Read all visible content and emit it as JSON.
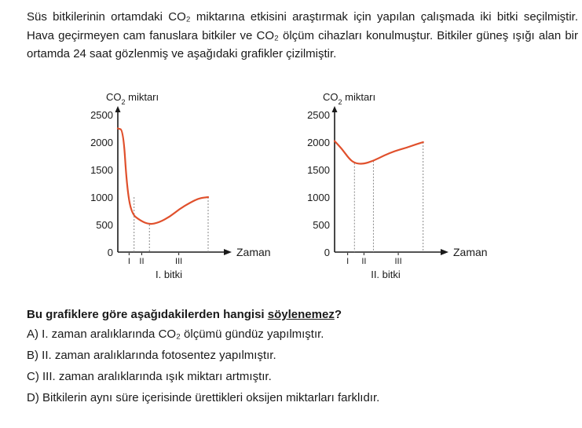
{
  "intro": {
    "text": "Süs bitkilerinin ortamdaki CO₂ miktarına etkisini araştırmak için yapılan çalışmada iki bitki seçilmiştir. Hava geçirmeyen cam fanuslara bitkiler ve CO₂ ölçüm cihazları konulmuştur. Bitkiler güneş ışığı alan bir ortamda 24 saat gözlenmiş ve aşağıdaki grafikler çizilmiştir."
  },
  "chart_data": [
    {
      "type": "line",
      "title": "I. bitki",
      "ylabel": "CO₂ miktarı",
      "xlabel": "Zaman",
      "ylim": [
        0,
        2500
      ],
      "yticks": [
        0,
        500,
        1000,
        1500,
        2000,
        2500
      ],
      "interval_labels": [
        "I",
        "II",
        "III"
      ],
      "x": [
        0,
        0.6,
        1.0,
        1.5,
        2.5,
        3.5,
        4.6,
        5.8,
        6.8,
        8.0,
        9.0,
        10.0
      ],
      "y": [
        2250,
        2220,
        1200,
        700,
        570,
        500,
        540,
        650,
        780,
        900,
        980,
        1000
      ],
      "boundaries": [
        1.8,
        3.5,
        10.0
      ],
      "line_color": "#e0502c",
      "guide_style": "dotted",
      "grid": false
    },
    {
      "type": "line",
      "title": "II. bitki",
      "ylabel": "CO₂ miktarı",
      "xlabel": "Zaman",
      "ylim": [
        0,
        2500
      ],
      "yticks": [
        0,
        500,
        1000,
        1500,
        2000,
        2500
      ],
      "interval_labels": [
        "I",
        "II",
        "III"
      ],
      "x": [
        0,
        0.8,
        1.6,
        2.2,
        3.1,
        4.3,
        5.5,
        6.7,
        8.0,
        9.0,
        9.8
      ],
      "y": [
        2020,
        1880,
        1700,
        1620,
        1600,
        1660,
        1760,
        1840,
        1900,
        1960,
        2000
      ],
      "boundaries": [
        2.2,
        4.3,
        9.8
      ],
      "line_color": "#e0502c",
      "guide_style": "dotted",
      "grid": false
    }
  ],
  "question": {
    "prefix": "Bu grafiklere göre aşağıdakilerden hangisi ",
    "emphasis": "söylenemez",
    "suffix": "?"
  },
  "options": [
    "A) I. zaman aralıklarında CO₂ ölçümü gündüz yapılmıştır.",
    "B) II. zaman aralıklarında fotosentez yapılmıştır.",
    "C) III. zaman aralıklarında ışık miktarı artmıştır.",
    "D) Bitkilerin aynı süre içerisinde ürettikleri oksijen miktarları farklıdır."
  ]
}
